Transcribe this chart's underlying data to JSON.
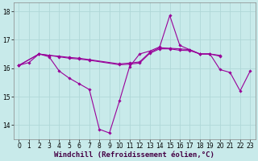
{
  "background_color": "#c8eaea",
  "grid_color": "#b0d8d8",
  "line_color": "#990099",
  "xlabel": "Windchill (Refroidissement éolien,°C)",
  "xlabel_fontsize": 6.5,
  "tick_fontsize": 5.5,
  "xlim": [
    -0.5,
    23.5
  ],
  "ylim": [
    13.5,
    18.3
  ],
  "yticks": [
    14,
    15,
    16,
    17,
    18
  ],
  "xticks": [
    0,
    1,
    2,
    3,
    4,
    5,
    6,
    7,
    8,
    9,
    10,
    11,
    12,
    13,
    14,
    15,
    16,
    17,
    18,
    19,
    20,
    21,
    22,
    23
  ],
  "series": [
    [
      16.1,
      16.2,
      16.5,
      16.4,
      15.9,
      15.65,
      15.45,
      15.25,
      13.85,
      13.72,
      14.85,
      16.05,
      16.5,
      16.6,
      16.75,
      17.85,
      16.8,
      16.65,
      16.5,
      16.5,
      15.95,
      15.85,
      15.2,
      15.9
    ],
    [
      16.1,
      null,
      16.5,
      16.45,
      16.42,
      16.38,
      16.35,
      16.3,
      null,
      null,
      16.15,
      16.18,
      16.22,
      16.55,
      16.72,
      16.7,
      16.68,
      16.65,
      16.5,
      16.5,
      16.45,
      null,
      null,
      null
    ],
    [
      16.1,
      null,
      16.5,
      16.45,
      16.4,
      16.35,
      16.32,
      16.28,
      null,
      null,
      16.12,
      16.14,
      16.18,
      16.52,
      16.68,
      16.68,
      16.63,
      16.62,
      16.5,
      16.5,
      16.42,
      null,
      null,
      null
    ]
  ],
  "figsize": [
    3.2,
    2.0
  ],
  "dpi": 100
}
